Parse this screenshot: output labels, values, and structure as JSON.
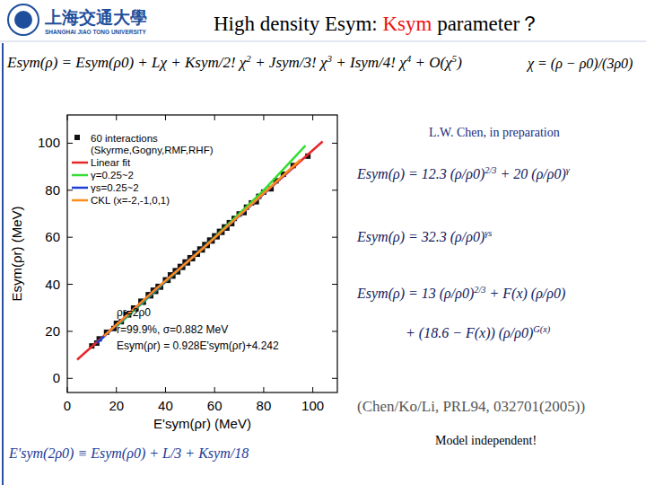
{
  "slide": {
    "logo": {
      "name_cn": "上海交通大學",
      "name_en": "SHANGHAI JIAO TONG UNIVERSITY"
    },
    "title": [
      "High density Esym: ",
      "Ksym",
      " parameter？"
    ],
    "expansion": [
      "Esym(ρ) = Esym(ρ0) + Lχ + Ksym/2! χ",
      "2",
      " + Jsym/3! χ",
      "3",
      " + Isym/4! χ",
      "4",
      " + O(χ",
      "5",
      ")"
    ],
    "chi": "χ = (ρ − ρ0)/(3ρ0)",
    "reference": "L.W. Chen, in preparation",
    "formulas": [
      [
        "Esym(ρ) = 12.3 (ρ/ρ0)",
        "2/3",
        " + 20 (ρ/ρ0)",
        "γ"
      ],
      [
        "Esym(ρ) = 32.3 (ρ/ρ0)",
        "γs"
      ],
      [
        "Esym(ρ) = 13 (ρ/ρ0)",
        "2/3",
        " + F(x) (ρ/ρ0)"
      ],
      [
        "+ (18.6 − F(x)) (ρ/ρ0)",
        "G(x)"
      ]
    ],
    "citation": "(Chen/Ko/Li, PRL94, 032701(2005))",
    "relation": "E'sym(2ρ0) ≡ Esym(ρ0) + L/3 + Ksym/18",
    "conclusion": "Model independent!"
  },
  "chart_data": {
    "type": "scatter",
    "x_label": "E'sym(ρr) (MeV)",
    "y_label": "Esym(ρr) (MeV)",
    "xlim": [
      0,
      110
    ],
    "ylim": [
      -6,
      112
    ],
    "xticks": [
      0,
      20,
      40,
      60,
      80,
      100
    ],
    "yticks": [
      0,
      20,
      40,
      60,
      80,
      100
    ],
    "legend": "upper left",
    "series": [
      {
        "name": "60 interactions (Skyrme,Gogny,RMF,RHF)",
        "type": "scatter",
        "marker": "square",
        "color": "#111111",
        "x": [
          10,
          12,
          13,
          16,
          19,
          20,
          22,
          24,
          25,
          27,
          28,
          30,
          31,
          33,
          34,
          35,
          36,
          37,
          38,
          40,
          41,
          42,
          43,
          44,
          45,
          46,
          47,
          48,
          49,
          50,
          51,
          52,
          53,
          54,
          55,
          56,
          57,
          58,
          59,
          60,
          61,
          62,
          63,
          64,
          65,
          66,
          67,
          68,
          70,
          72,
          73,
          75,
          77,
          78,
          80,
          83,
          85,
          88,
          92,
          98
        ],
        "values": [
          13.8,
          15.0,
          16.8,
          19.6,
          21.2,
          23.4,
          24.1,
          27.2,
          27.0,
          29.9,
          29.6,
          32.8,
          32.4,
          35.6,
          35.1,
          37.5,
          37.0,
          39.1,
          38.8,
          41.9,
          41.7,
          44.0,
          43.5,
          45.8,
          45.3,
          47.6,
          47.2,
          49.5,
          49.1,
          51.3,
          50.9,
          53.2,
          52.8,
          55.0,
          54.6,
          56.9,
          56.5,
          58.8,
          58.4,
          60.6,
          60.2,
          62.5,
          62.1,
          64.4,
          63.9,
          66.2,
          65.8,
          68.0,
          69.9,
          70.5,
          72.8,
          74.6,
          75.1,
          77.4,
          79.2,
          80.6,
          84.0,
          86.8,
          90.5,
          94.5
        ]
      },
      {
        "name": "Linear fit",
        "type": "line",
        "color": "#e8262a",
        "x": [
          4,
          104
        ],
        "values": [
          7.96,
          100.75
        ]
      },
      {
        "name": "γ=0.25~2",
        "type": "line",
        "color": "#33dd33",
        "x": [
          20,
          40,
          60,
          80,
          97
        ],
        "values": [
          22,
          41,
          60,
          80,
          99
        ]
      },
      {
        "name": "γs=0.25~2",
        "type": "line",
        "color": "#1f3fd8",
        "x": [
          12,
          30,
          50,
          70,
          92
        ],
        "values": [
          15,
          32,
          50.5,
          69,
          90
        ]
      },
      {
        "name": "CKL (x=-2,-1,0,1)",
        "type": "line",
        "color": "#ff8c1a",
        "x": [
          15,
          35,
          55,
          75,
          95
        ],
        "values": [
          18,
          37,
          55,
          74,
          93
        ]
      }
    ],
    "annotations": [
      "ρr=2ρ0",
      "r=99.9%, σ=0.882 MeV",
      "Esym(ρr) = 0.928E'sym(ρr)+4.242"
    ]
  }
}
